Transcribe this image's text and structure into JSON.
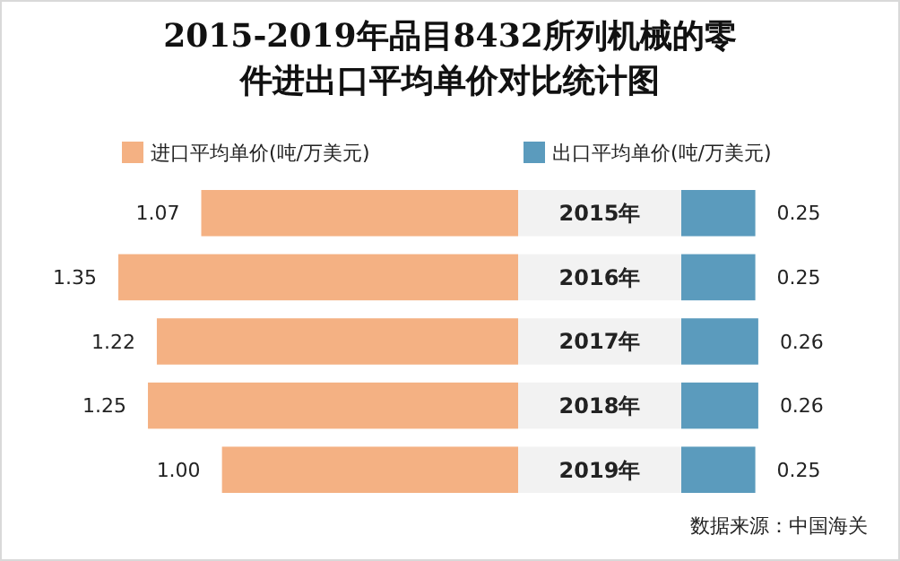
{
  "chart_data": [
    {
      "type": "bar",
      "orientation": "horizontal",
      "title": "2015-2019年品目8432所列机械的零件进出口平均单价对比统计图",
      "categories": [
        "2015年",
        "2016年",
        "2017年",
        "2018年",
        "2019年"
      ],
      "tick_labels": "y",
      "legend": "top",
      "series": [
        {
          "name": "进口平均单价(吨/万美元)",
          "color": "#f4b183",
          "values": [
            1.07,
            1.35,
            1.22,
            1.25,
            1.0
          ],
          "value_labels": [
            "1.07",
            "1.35",
            "1.22",
            "1.25",
            "1.00"
          ]
        }
      ]
    },
    {
      "type": "bar",
      "orientation": "horizontal",
      "categories": [
        null,
        null,
        null,
        null,
        null
      ],
      "tick_labels": false,
      "legend": "top",
      "series": [
        {
          "name": "出口平均单价(吨/万美元)",
          "color": "#5b9bbd",
          "values": [
            0.25,
            0.25,
            0.26,
            0.26,
            0.25
          ],
          "value_labels": [
            "0.25",
            "0.25",
            "0.26",
            "0.26",
            "0.25"
          ]
        }
      ],
      "annotations": [
        "数据来源：中国海关"
      ]
    }
  ]
}
